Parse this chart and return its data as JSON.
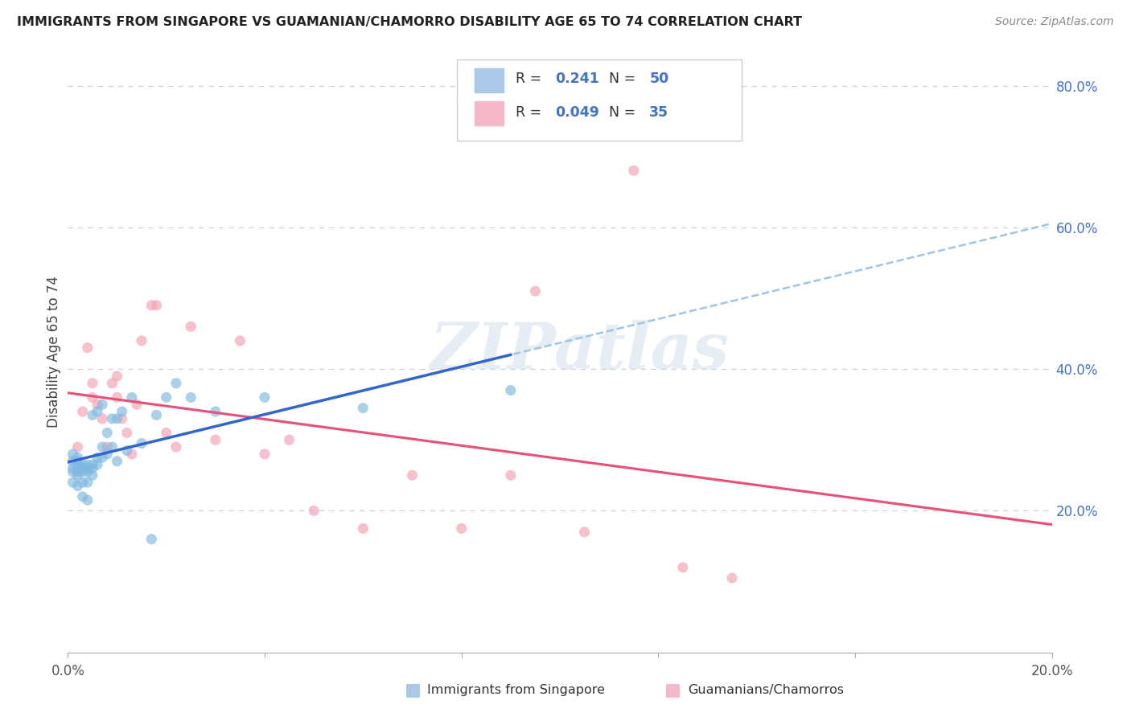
{
  "title": "IMMIGRANTS FROM SINGAPORE VS GUAMANIAN/CHAMORRO DISABILITY AGE 65 TO 74 CORRELATION CHART",
  "source": "Source: ZipAtlas.com",
  "ylabel": "Disability Age 65 to 74",
  "xlim": [
    0.0,
    0.2
  ],
  "ylim": [
    0.0,
    0.85
  ],
  "watermark": "ZIPatlas",
  "blue_scatter_color": "#7fb8e0",
  "pink_scatter_color": "#f4a0b0",
  "blue_line_color": "#3366cc",
  "pink_line_color": "#e8507a",
  "blue_dash_color": "#a0c4e8",
  "grid_color": "#d0d0d0",
  "right_tick_color": "#4472c4",
  "legend_text_color": "#4472c4",
  "legend_label_color": "#333333",
  "title_color": "#222222",
  "source_color": "#888888",
  "singapore_x": [
    0.001,
    0.001,
    0.001,
    0.001,
    0.001,
    0.002,
    0.002,
    0.002,
    0.002,
    0.002,
    0.002,
    0.003,
    0.003,
    0.003,
    0.003,
    0.003,
    0.004,
    0.004,
    0.004,
    0.004,
    0.004,
    0.005,
    0.005,
    0.005,
    0.005,
    0.006,
    0.006,
    0.006,
    0.007,
    0.007,
    0.007,
    0.008,
    0.008,
    0.009,
    0.009,
    0.01,
    0.01,
    0.011,
    0.012,
    0.013,
    0.015,
    0.017,
    0.018,
    0.02,
    0.022,
    0.025,
    0.03,
    0.04,
    0.06,
    0.09
  ],
  "singapore_y": [
    0.24,
    0.255,
    0.26,
    0.27,
    0.28,
    0.235,
    0.25,
    0.255,
    0.265,
    0.27,
    0.275,
    0.22,
    0.24,
    0.255,
    0.26,
    0.265,
    0.215,
    0.24,
    0.255,
    0.26,
    0.265,
    0.25,
    0.26,
    0.265,
    0.335,
    0.265,
    0.275,
    0.34,
    0.275,
    0.29,
    0.35,
    0.28,
    0.31,
    0.29,
    0.33,
    0.27,
    0.33,
    0.34,
    0.285,
    0.36,
    0.295,
    0.16,
    0.335,
    0.36,
    0.38,
    0.36,
    0.34,
    0.36,
    0.345,
    0.37
  ],
  "guam_x": [
    0.002,
    0.003,
    0.004,
    0.005,
    0.005,
    0.006,
    0.007,
    0.008,
    0.009,
    0.01,
    0.01,
    0.011,
    0.012,
    0.013,
    0.014,
    0.015,
    0.017,
    0.018,
    0.02,
    0.022,
    0.025,
    0.03,
    0.035,
    0.04,
    0.045,
    0.05,
    0.06,
    0.07,
    0.08,
    0.09,
    0.095,
    0.105,
    0.115,
    0.125,
    0.135
  ],
  "guam_y": [
    0.29,
    0.34,
    0.43,
    0.36,
    0.38,
    0.35,
    0.33,
    0.29,
    0.38,
    0.36,
    0.39,
    0.33,
    0.31,
    0.28,
    0.35,
    0.44,
    0.49,
    0.49,
    0.31,
    0.29,
    0.46,
    0.3,
    0.44,
    0.28,
    0.3,
    0.2,
    0.175,
    0.25,
    0.175,
    0.25,
    0.51,
    0.17,
    0.68,
    0.12,
    0.105
  ]
}
